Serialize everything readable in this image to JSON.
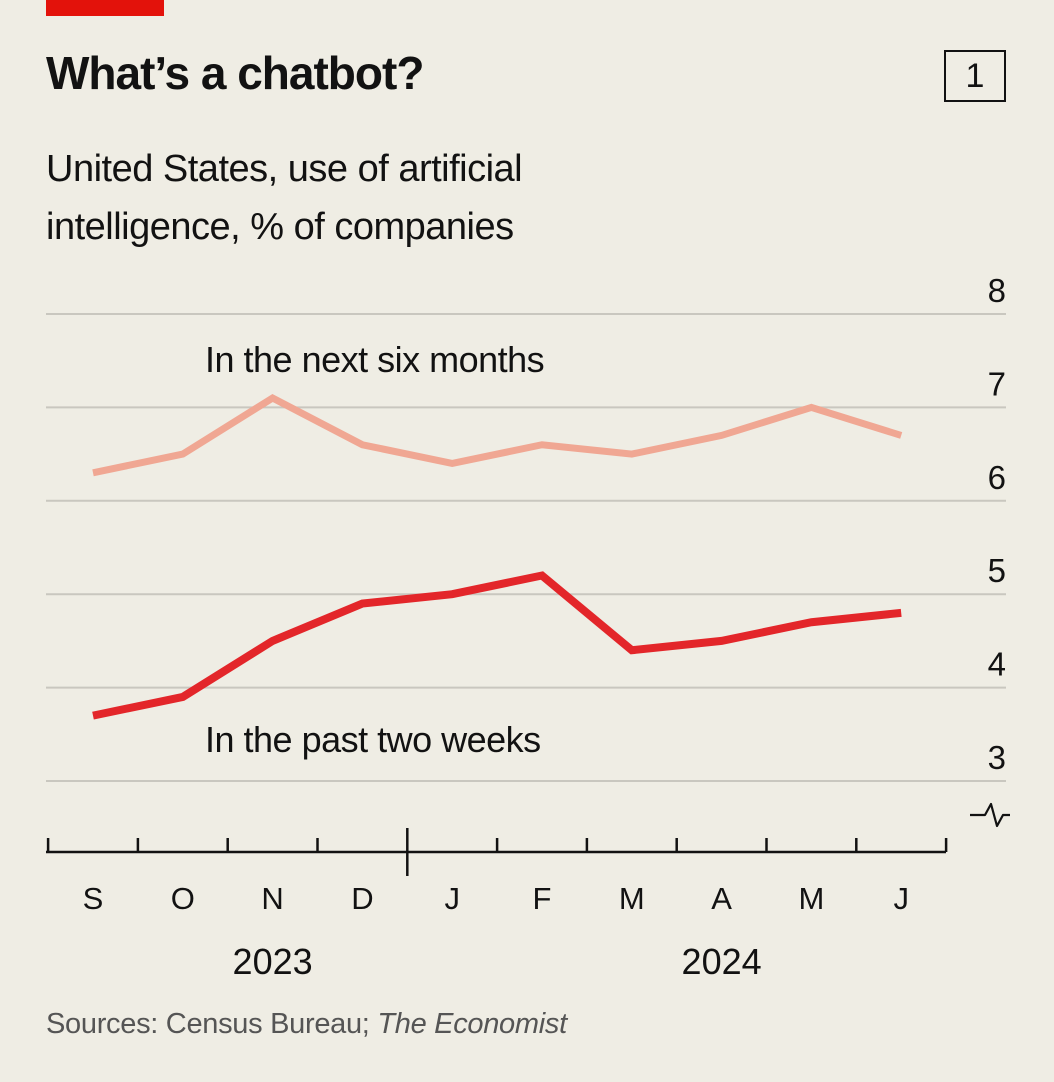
{
  "header": {
    "title": "What’s a chatbot?",
    "badge": "1",
    "subtitle": "United States, use of artificial intelligence, % of companies"
  },
  "footer": {
    "source_prefix": "Sources: Census Bureau; ",
    "source_italic": "The Economist"
  },
  "colors": {
    "next_six_months": "#f0a793",
    "past_two_weeks": "#e3262a",
    "grid": "#c9c7bf",
    "accent": "#e3120b"
  },
  "chart_data": {
    "type": "line",
    "categories": [
      "S",
      "O",
      "N",
      "D",
      "J",
      "F",
      "M",
      "A",
      "M",
      "J"
    ],
    "year_labels": [
      {
        "label": "2023",
        "category_index": 2
      },
      {
        "label": "2024",
        "category_index": 7
      }
    ],
    "series": [
      {
        "name": "In the next six months",
        "color_key": "next_six_months",
        "values": [
          6.3,
          6.5,
          7.1,
          6.6,
          6.4,
          6.6,
          6.5,
          6.7,
          7.0,
          6.7
        ]
      },
      {
        "name": "In the past two weeks",
        "color_key": "past_two_weeks",
        "values": [
          3.7,
          3.9,
          4.5,
          4.9,
          5.0,
          5.2,
          4.4,
          4.5,
          4.7,
          4.8
        ]
      }
    ],
    "ylim": [
      3,
      8
    ],
    "yticks": [
      3,
      4,
      5,
      6,
      7,
      8
    ],
    "axis_break": true,
    "grid": true,
    "legend": "inline labels"
  }
}
